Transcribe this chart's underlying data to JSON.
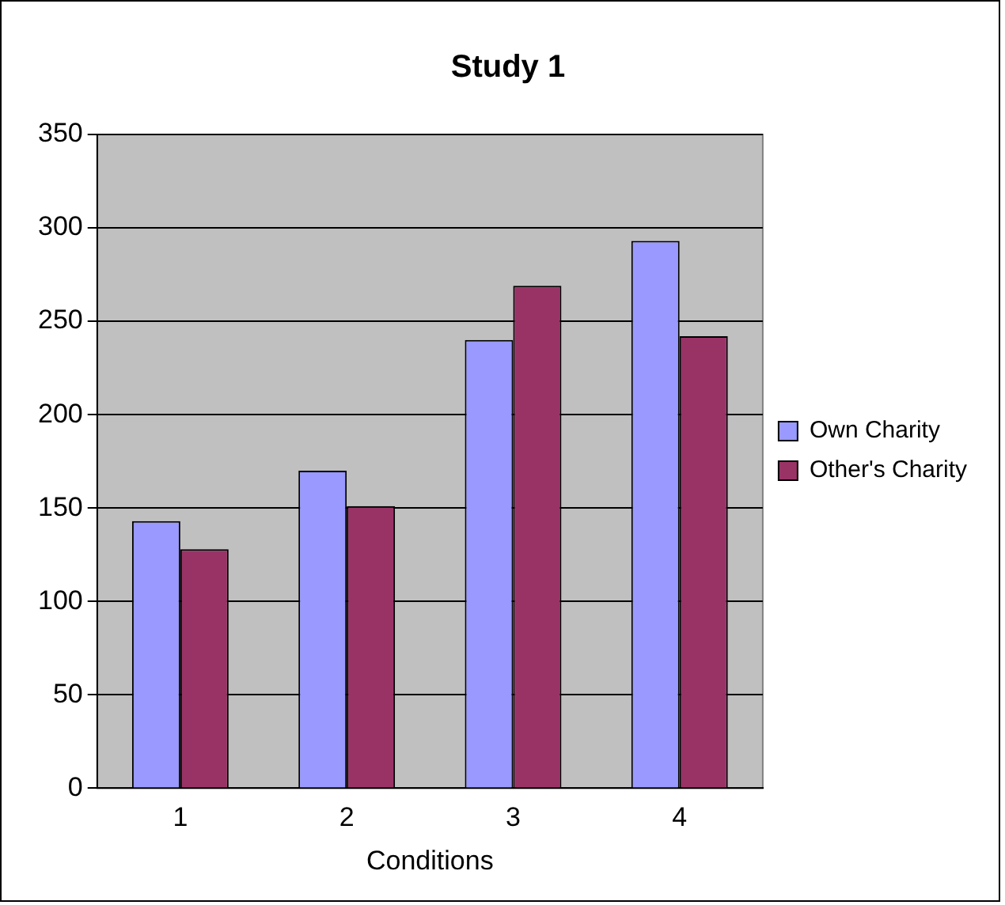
{
  "chart_data": {
    "type": "bar",
    "title": "Study 1",
    "xlabel": "Conditions",
    "categories": [
      "1",
      "2",
      "3",
      "4"
    ],
    "series": [
      {
        "name": "Own Charity",
        "color": "#9999ff",
        "values": [
          143,
          170,
          240,
          293
        ]
      },
      {
        "name": "Other's Charity",
        "color": "#993366",
        "values": [
          128,
          151,
          269,
          242
        ]
      }
    ],
    "ylim": [
      0,
      350
    ],
    "yticks": [
      0,
      50,
      100,
      150,
      200,
      250,
      300,
      350
    ],
    "grid": "y",
    "legend": "right"
  }
}
